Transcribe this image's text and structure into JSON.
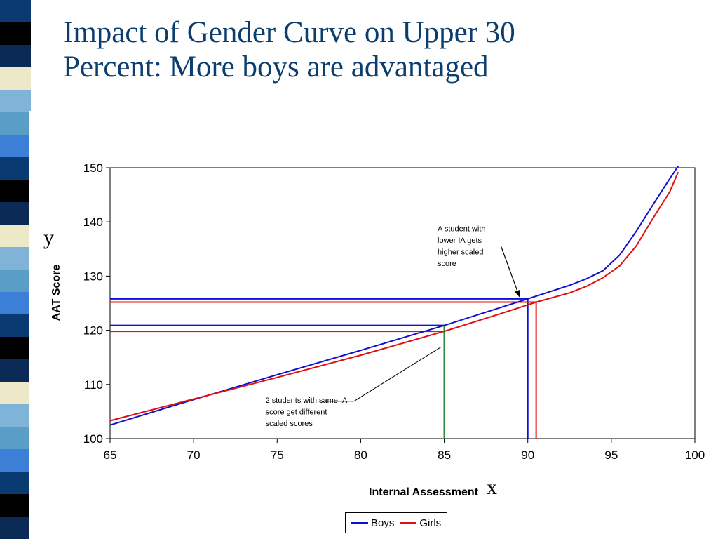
{
  "slide": {
    "title_line1": "Impact of Gender  Curve on Upper 30",
    "title_line2": "Percent: More boys are advantaged",
    "title_color": "#0b3d6e"
  },
  "chart_data": {
    "type": "line",
    "xlabel": "Internal Assessment",
    "ylabel": "AAT Score",
    "xlim": [
      65,
      100
    ],
    "ylim": [
      100,
      150
    ],
    "x_ticks": [
      65,
      70,
      75,
      80,
      85,
      90,
      95,
      100
    ],
    "y_ticks": [
      100,
      110,
      120,
      130,
      140,
      150
    ],
    "grid": false,
    "legend_position": "bottom",
    "series": [
      {
        "name": "Boys",
        "color": "#1010d0",
        "x": [
          65,
          70,
          75,
          80,
          85,
          90,
          91.3,
          92.5,
          93.5,
          94.5,
          95.5,
          96.5,
          97.5,
          98.5,
          99
        ],
        "y": [
          102.5,
          107.2,
          111.8,
          116.3,
          120.9,
          125.8,
          127.1,
          128.3,
          129.5,
          131.0,
          133.9,
          138.3,
          143.2,
          148.0,
          150.3
        ]
      },
      {
        "name": "Girls",
        "color": "#e01010",
        "x": [
          65,
          70,
          75,
          80,
          85,
          88.5,
          90.5,
          92.5,
          93.5,
          94.5,
          95.5,
          96.5,
          97.5,
          98.5,
          99
        ],
        "y": [
          103.3,
          107.3,
          111.3,
          115.4,
          119.8,
          123.2,
          125.2,
          126.9,
          128.1,
          129.7,
          131.9,
          135.6,
          140.7,
          145.6,
          149.2
        ]
      }
    ],
    "reference_lines": [
      {
        "x": 85,
        "y": 120.9,
        "color": "#1010d0"
      },
      {
        "x": 85,
        "y": 119.8,
        "color": "#e01010"
      },
      {
        "x": 90,
        "y": 125.8,
        "color": "#1010d0"
      },
      {
        "x": 90.5,
        "y": 125.2,
        "color": "#e01010"
      },
      {
        "x": 85,
        "y": 120.9,
        "color": "#2e8b3a",
        "vertical_only": true
      }
    ],
    "annotations": [
      {
        "lines": [
          "A student with",
          "lower IA gets",
          "higher scaled",
          "score"
        ],
        "text_at": [
          84.6,
          138.3
        ],
        "arrow_from": [
          88.4,
          135.5
        ],
        "arrow_to": [
          89.5,
          126.2
        ]
      },
      {
        "lines": [
          "2 students with same IA",
          "score get different",
          "scaled scores"
        ],
        "text_at": [
          74.3,
          106.6
        ],
        "arrow_from": [
          84.8,
          116.9
        ],
        "arrow_to": [
          77.5,
          106.9
        ]
      }
    ],
    "axis_letters": {
      "x": "x",
      "y": "y"
    }
  },
  "legend": {
    "boys_label": "Boys",
    "girls_label": "Girls"
  },
  "decor": {
    "strip_colors": [
      "#0a3a72",
      "#5a9ec7",
      "#ece8c8",
      "#000000",
      "#3b7fd6",
      "#7fb3d8",
      "#0b2a55"
    ]
  }
}
